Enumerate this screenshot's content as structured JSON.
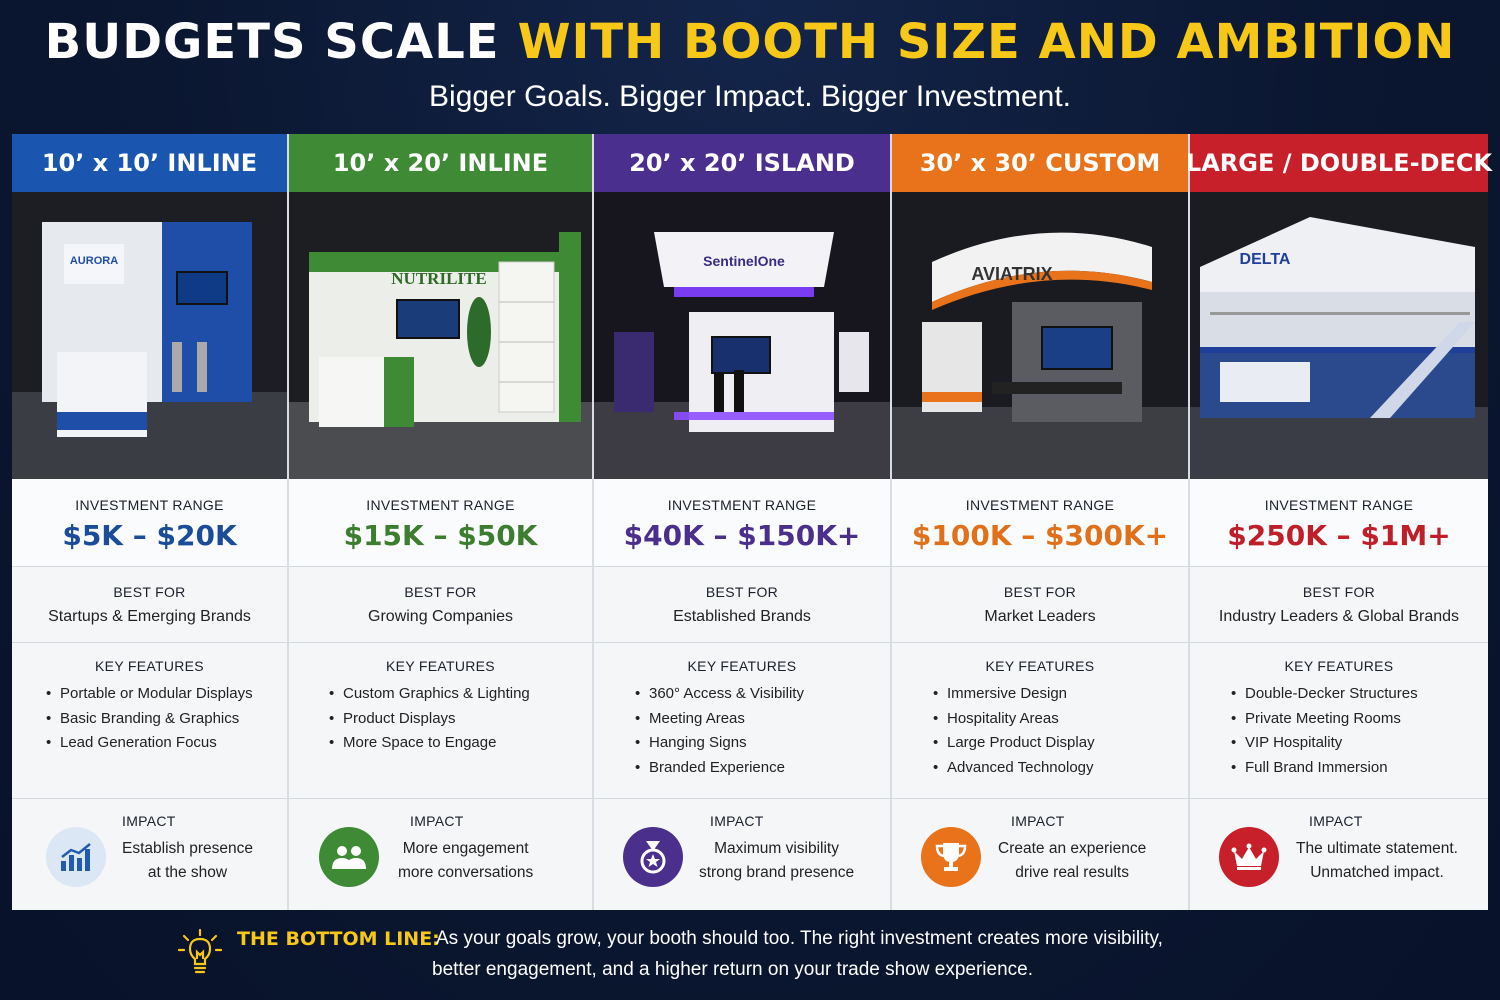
{
  "header": {
    "title_part1": "BUDGETS SCALE",
    "title_part2": "WITH BOOTH SIZE AND AMBITION",
    "subtitle": "Bigger Goals. Bigger Impact. Bigger Investment."
  },
  "colors": {
    "title_accent": "#f8c818",
    "blue": "#1a56b0",
    "green": "#3f8a35",
    "purple": "#4b2f8f",
    "orange": "#e8731a",
    "red": "#c8202a"
  },
  "labels": {
    "investment": "INVESTMENT RANGE",
    "best_for": "BEST FOR",
    "key_features": "KEY FEATURES",
    "impact": "IMPACT"
  },
  "columns": [
    {
      "header": "10’ x 10’ INLINE",
      "color": "#1a56b0",
      "price_color": "#1a4c9a",
      "booth_brand": "AURORA",
      "price": "$5K – $20K",
      "best_for": "Startups & Emerging Brands",
      "features": [
        "Portable or Modular Displays",
        "Basic Branding & Graphics",
        "Lead Generation Focus"
      ],
      "impact_icon": "bar-chart-icon",
      "impact_line1": "Establish presence",
      "impact_line2": "at the show"
    },
    {
      "header": "10’ x 20’ INLINE",
      "color": "#3f8a35",
      "price_color": "#3d7d30",
      "booth_brand": "NUTRILITE",
      "price": "$15K – $50K",
      "best_for": "Growing Companies",
      "features": [
        "Custom Graphics & Lighting",
        "Product Displays",
        "More Space to Engage"
      ],
      "impact_icon": "people-icon",
      "impact_line1": "More engagement",
      "impact_line2": "more conversations"
    },
    {
      "header": "20’ x 20’ ISLAND",
      "color": "#4b2f8f",
      "price_color": "#4a2f8c",
      "booth_brand": "SentinelOne",
      "price": "$40K – $150K+",
      "best_for": "Established Brands",
      "features": [
        "360° Access & Visibility",
        "Meeting Areas",
        "Hanging Signs",
        "Branded Experience"
      ],
      "impact_icon": "award-medal-icon",
      "impact_line1": "Maximum visibility",
      "impact_line2": "strong brand presence"
    },
    {
      "header": "30’ x 30’ CUSTOM",
      "color": "#e8731a",
      "price_color": "#e0701a",
      "booth_brand": "AVIATRIX",
      "price": "$100K – $300K+",
      "best_for": "Market Leaders",
      "features": [
        "Immersive Design",
        "Hospitality Areas",
        "Large Product Display",
        "Advanced Technology"
      ],
      "impact_icon": "trophy-icon",
      "impact_line1": "Create an experience",
      "impact_line2": "drive real results"
    },
    {
      "header": "LARGE / DOUBLE-DECK",
      "color": "#c8202a",
      "price_color": "#c01e28",
      "booth_brand": "DELTA",
      "price": "$250K – $1M+",
      "best_for": "Industry Leaders & Global Brands",
      "features": [
        "Double-Decker Structures",
        "Private Meeting Rooms",
        "VIP Hospitality",
        "Full Brand Immersion"
      ],
      "impact_icon": "crown-icon",
      "impact_line1": "The ultimate statement.",
      "impact_line2": "Unmatched impact."
    }
  ],
  "footer": {
    "label": "THE BOTTOM LINE:",
    "line1": "As your goals grow, your booth should too. The right investment creates more visibility,",
    "line2": "better engagement, and a higher return on your trade show experience."
  }
}
